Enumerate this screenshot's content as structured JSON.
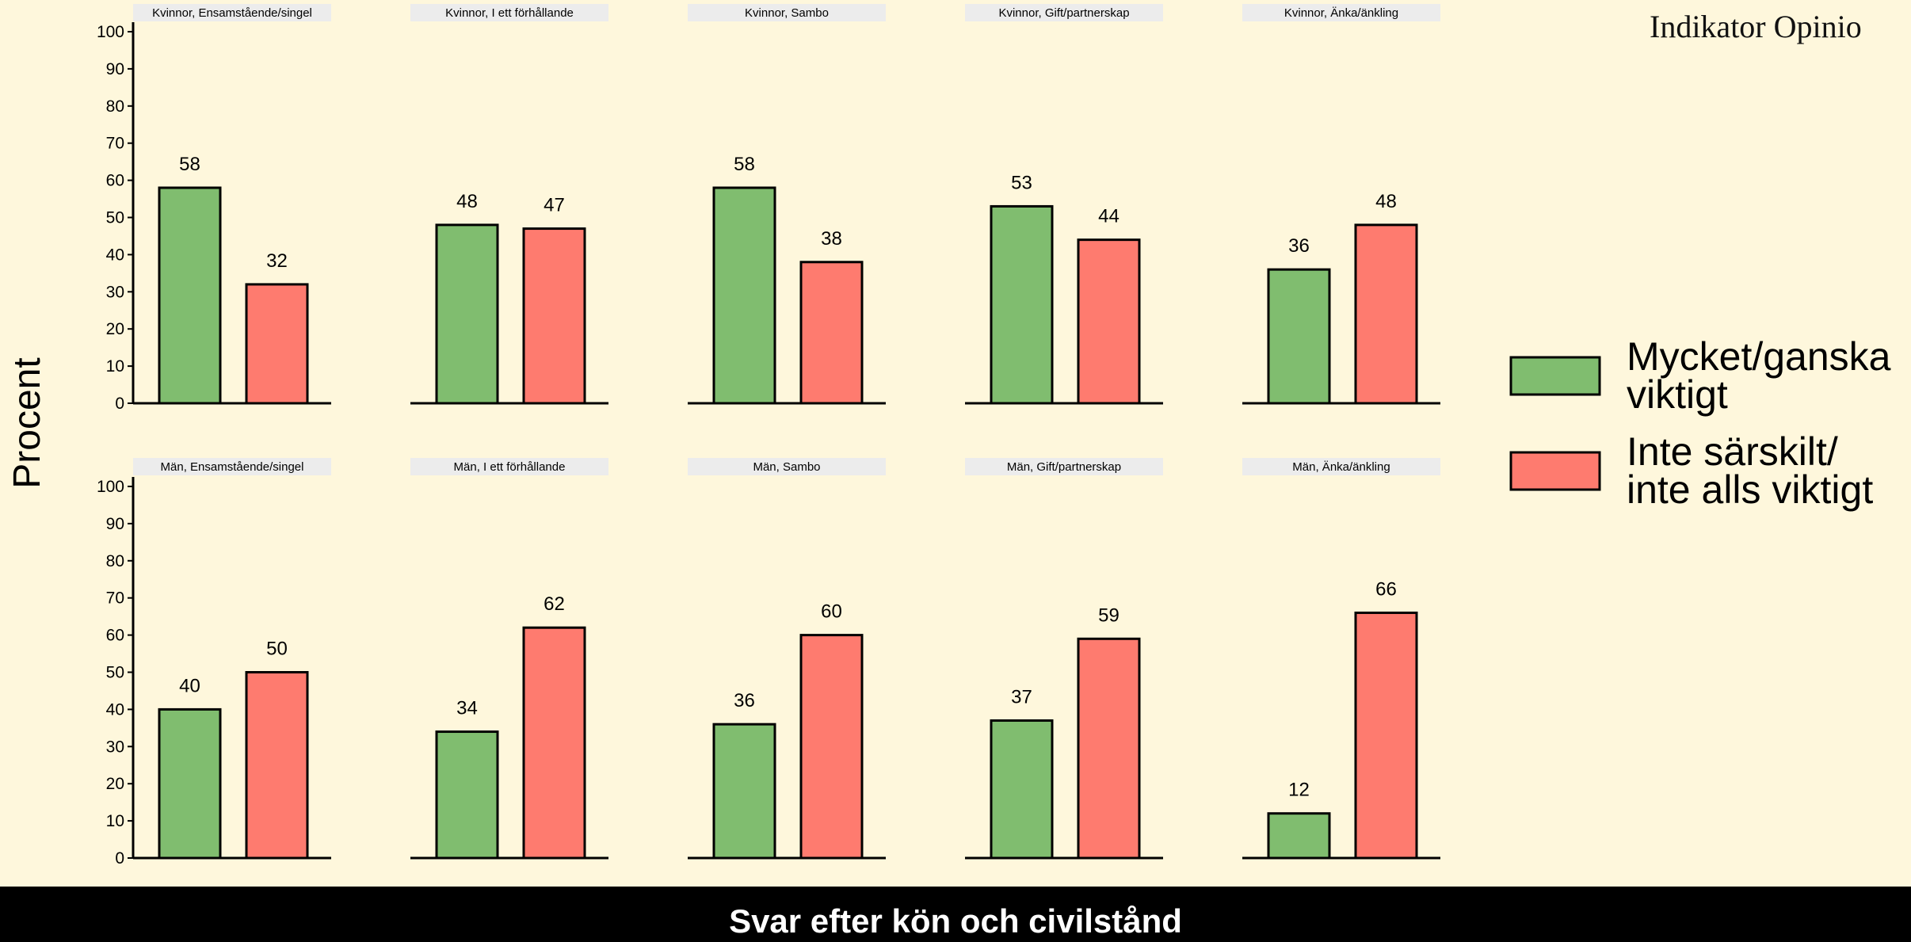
{
  "brand": {
    "text": "Indikator Opinio"
  },
  "footer": {
    "title": "Svar efter kön och civilstånd"
  },
  "chart_data": {
    "type": "bar",
    "ylabel": "Procent",
    "ylim": [
      0,
      100
    ],
    "yticks": [
      0,
      10,
      20,
      30,
      40,
      50,
      60,
      70,
      80,
      90,
      100
    ],
    "legend": {
      "position": "right",
      "entries": [
        {
          "name": "Mycket/ganska viktigt",
          "lines": [
            "Mycket/ganska",
            "viktigt"
          ],
          "color": "#80bd6f"
        },
        {
          "name": "Inte särskilt/ inte alls viktigt",
          "lines": [
            "Inte särskilt/",
            "inte alls viktigt"
          ],
          "color": "#fe7b6f"
        }
      ]
    },
    "panels": [
      {
        "title": "Kvinnor, Ensamstående/singel",
        "values": [
          58,
          32
        ]
      },
      {
        "title": "Kvinnor, I ett förhållande",
        "values": [
          48,
          47
        ]
      },
      {
        "title": "Kvinnor, Sambo",
        "values": [
          58,
          38
        ]
      },
      {
        "title": "Kvinnor, Gift/partnerskap",
        "values": [
          53,
          44
        ]
      },
      {
        "title": "Kvinnor, Änka/änkling",
        "values": [
          36,
          48
        ]
      },
      {
        "title": "Män, Ensamstående/singel",
        "values": [
          40,
          50
        ]
      },
      {
        "title": "Män, I ett förhållande",
        "values": [
          34,
          62
        ]
      },
      {
        "title": "Män, Sambo",
        "values": [
          36,
          60
        ]
      },
      {
        "title": "Män, Gift/partnerskap",
        "values": [
          37,
          59
        ]
      },
      {
        "title": "Män, Änka/änkling",
        "values": [
          12,
          66
        ]
      }
    ]
  }
}
